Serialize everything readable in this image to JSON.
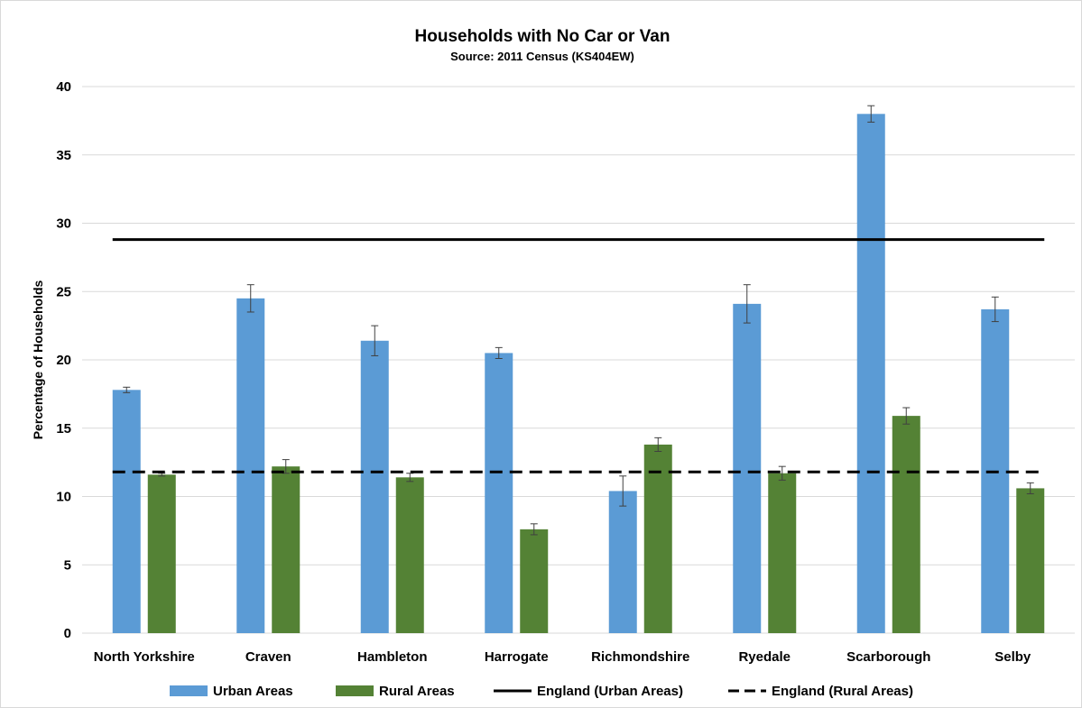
{
  "chart_data": {
    "type": "bar",
    "title": "Households with No Car or Van",
    "subtitle": "Source: 2011 Census (KS404EW)",
    "xlabel": "",
    "ylabel": "Percentage of Households",
    "ylim": [
      0,
      40
    ],
    "yticks": [
      0,
      5,
      10,
      15,
      20,
      25,
      30,
      35,
      40
    ],
    "grid": true,
    "legend_position": "bottom",
    "categories": [
      "North Yorkshire",
      "Craven",
      "Hambleton",
      "Harrogate",
      "Richmondshire",
      "Ryedale",
      "Scarborough",
      "Selby"
    ],
    "series": [
      {
        "name": "Urban Areas",
        "color": "#5b9bd5",
        "values": [
          17.8,
          24.5,
          21.4,
          20.5,
          10.4,
          24.1,
          38.0,
          23.7
        ],
        "error": [
          0.2,
          1.0,
          1.1,
          0.4,
          1.1,
          1.4,
          0.6,
          0.9
        ]
      },
      {
        "name": "Rural Areas",
        "color": "#548235",
        "values": [
          11.6,
          12.2,
          11.4,
          7.6,
          13.8,
          11.7,
          15.9,
          10.6
        ],
        "error": [
          0.1,
          0.5,
          0.3,
          0.4,
          0.5,
          0.5,
          0.6,
          0.4
        ]
      }
    ],
    "reference_lines": [
      {
        "name": "England (Urban Areas)",
        "value": 28.8,
        "style": "solid",
        "color": "#000000"
      },
      {
        "name": "England (Rural Areas)",
        "value": 11.8,
        "style": "dashed",
        "color": "#000000"
      }
    ]
  }
}
